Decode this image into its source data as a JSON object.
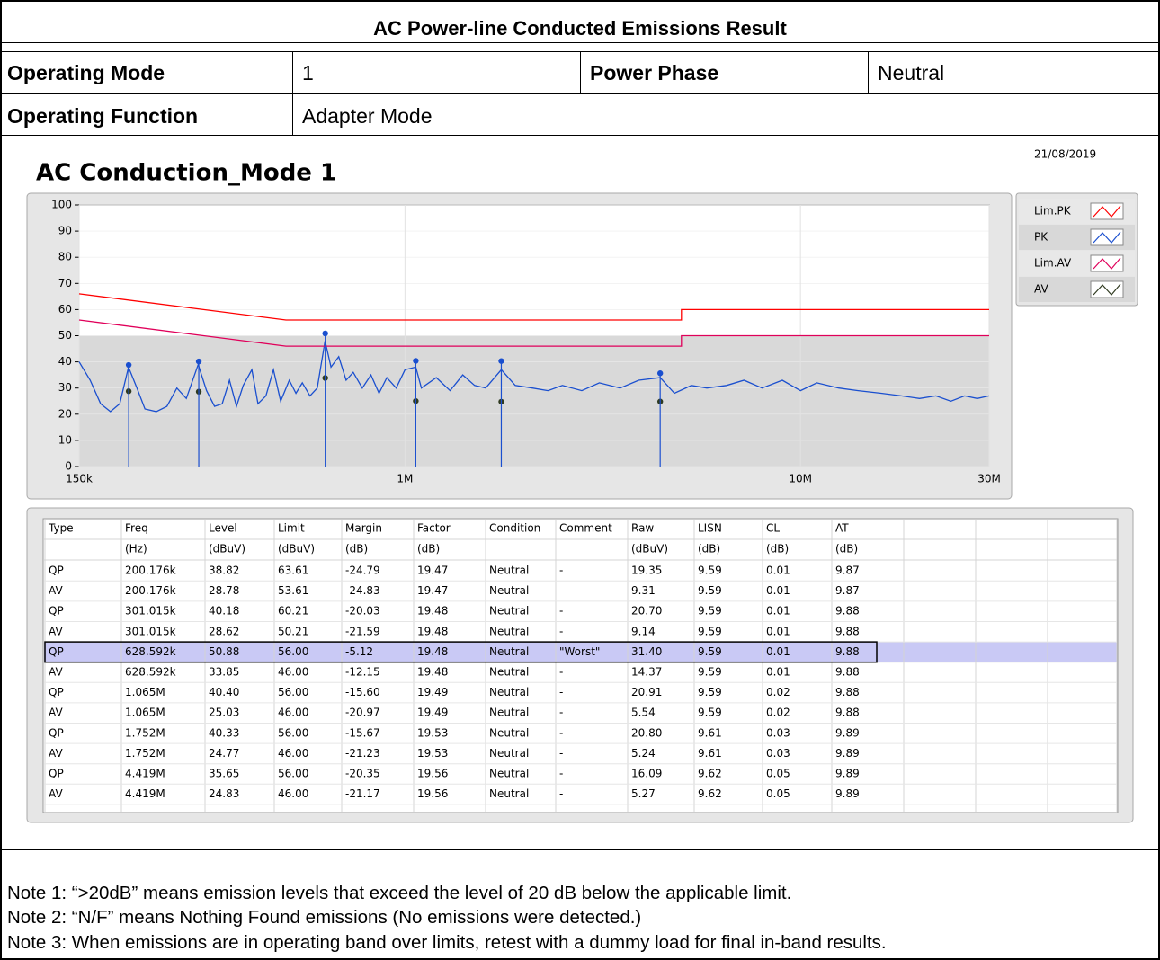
{
  "header": {
    "title": "AC Power-line Conducted Emissions Result",
    "rows": [
      [
        {
          "label": "Operating Mode",
          "value": "1"
        },
        {
          "label": "Power Phase",
          "value": "Neutral"
        }
      ],
      [
        {
          "label": "Operating Function",
          "value": "Adapter Mode"
        }
      ]
    ]
  },
  "chart_data": {
    "type": "line",
    "title": "AC Conduction_Mode 1",
    "date": "21/08/2019",
    "xscale": "log",
    "grid": true,
    "legend": "right",
    "xlim": [
      150000,
      30000000
    ],
    "xticks": [
      {
        "value": 150000,
        "label": "150k"
      },
      {
        "value": 1000000,
        "label": "1M"
      },
      {
        "value": 10000000,
        "label": "10M"
      },
      {
        "value": 30000000,
        "label": "30M"
      }
    ],
    "ylim": [
      0,
      100
    ],
    "yticks": [
      0,
      10,
      20,
      30,
      40,
      50,
      60,
      70,
      80,
      90,
      100
    ],
    "series": [
      {
        "name": "Lim.PK",
        "color": "#ff0000",
        "style": "line",
        "x": [
          150000,
          500000,
          5000000,
          5000000,
          30000000
        ],
        "values": [
          66,
          56,
          56,
          60,
          60
        ]
      },
      {
        "name": "PK",
        "color": "#1a4fcf",
        "style": "line",
        "x": [
          150000,
          160000,
          170000,
          180000,
          190000,
          200000,
          210000,
          220000,
          235000,
          250000,
          265000,
          280000,
          300000,
          315000,
          330000,
          345000,
          360000,
          375000,
          390000,
          410000,
          425000,
          445000,
          465000,
          485000,
          510000,
          530000,
          550000,
          575000,
          600000,
          628000,
          650000,
          680000,
          710000,
          740000,
          780000,
          820000,
          860000,
          900000,
          950000,
          1000000,
          1065000,
          1100000,
          1200000,
          1300000,
          1400000,
          1500000,
          1600000,
          1752000,
          1900000,
          2100000,
          2300000,
          2500000,
          2800000,
          3100000,
          3500000,
          3900000,
          4419000,
          4800000,
          5300000,
          5800000,
          6500000,
          7200000,
          8000000,
          9000000,
          10000000,
          11000000,
          12500000,
          14000000,
          16000000,
          18000000,
          20000000,
          22000000,
          24000000,
          26000000,
          28000000,
          30000000
        ],
        "values": [
          40,
          33,
          24,
          21,
          24,
          38,
          30,
          22,
          21,
          23,
          30,
          26,
          39,
          29,
          23,
          24,
          33,
          23,
          31,
          37,
          24,
          27,
          37,
          25,
          33,
          28,
          32,
          27,
          30,
          48,
          38,
          42,
          33,
          36,
          30,
          35,
          28,
          34,
          30,
          37,
          38,
          30,
          34,
          29,
          35,
          31,
          30,
          37,
          31,
          30,
          29,
          31,
          29,
          32,
          30,
          33,
          34,
          28,
          31,
          30,
          31,
          33,
          30,
          33,
          29,
          32,
          30,
          29,
          28,
          27,
          26,
          27,
          25,
          27,
          26,
          27
        ]
      },
      {
        "name": "Lim.AV",
        "color": "#e0005a",
        "style": "line",
        "x": [
          150000,
          500000,
          5000000,
          5000000,
          30000000
        ],
        "values": [
          56,
          46,
          46,
          50,
          50
        ]
      },
      {
        "name": "AV",
        "color": "#2f3a1f",
        "style": "dots",
        "x": [
          200176,
          301015,
          628592,
          1065000,
          1752000,
          4419000
        ],
        "values": [
          28.78,
          28.62,
          33.85,
          25.03,
          24.77,
          24.83
        ]
      }
    ],
    "markers": {
      "color": "#1a4fcf",
      "x": [
        200176,
        301015,
        628592,
        1065000,
        1752000,
        4419000
      ],
      "values": [
        38.82,
        40.18,
        50.88,
        40.4,
        40.33,
        35.65
      ]
    }
  },
  "results": {
    "columns": [
      "Type",
      "Freq",
      "Level",
      "Limit",
      "Margin",
      "Factor",
      "Condition",
      "Comment",
      "Raw",
      "LISN",
      "CL",
      "AT"
    ],
    "units": [
      null,
      "(Hz)",
      "(dBuV)",
      "(dBuV)",
      "(dB)",
      "(dB)",
      null,
      null,
      "(dBuV)",
      "(dB)",
      "(dB)",
      "(dB)"
    ],
    "highlight": 4,
    "rows": [
      [
        "QP",
        "200.176k",
        "38.82",
        "63.61",
        "-24.79",
        "19.47",
        "Neutral",
        "-",
        "19.35",
        "9.59",
        "0.01",
        "9.87"
      ],
      [
        "AV",
        "200.176k",
        "28.78",
        "53.61",
        "-24.83",
        "19.47",
        "Neutral",
        "-",
        "9.31",
        "9.59",
        "0.01",
        "9.87"
      ],
      [
        "QP",
        "301.015k",
        "40.18",
        "60.21",
        "-20.03",
        "19.48",
        "Neutral",
        "-",
        "20.70",
        "9.59",
        "0.01",
        "9.88"
      ],
      [
        "AV",
        "301.015k",
        "28.62",
        "50.21",
        "-21.59",
        "19.48",
        "Neutral",
        "-",
        "9.14",
        "9.59",
        "0.01",
        "9.88"
      ],
      [
        "QP",
        "628.592k",
        "50.88",
        "56.00",
        "-5.12",
        "19.48",
        "Neutral",
        "\"Worst\"",
        "31.40",
        "9.59",
        "0.01",
        "9.88"
      ],
      [
        "AV",
        "628.592k",
        "33.85",
        "46.00",
        "-12.15",
        "19.48",
        "Neutral",
        "-",
        "14.37",
        "9.59",
        "0.01",
        "9.88"
      ],
      [
        "QP",
        "1.065M",
        "40.40",
        "56.00",
        "-15.60",
        "19.49",
        "Neutral",
        "-",
        "20.91",
        "9.59",
        "0.02",
        "9.88"
      ],
      [
        "AV",
        "1.065M",
        "25.03",
        "46.00",
        "-20.97",
        "19.49",
        "Neutral",
        "-",
        "5.54",
        "9.59",
        "0.02",
        "9.88"
      ],
      [
        "QP",
        "1.752M",
        "40.33",
        "56.00",
        "-15.67",
        "19.53",
        "Neutral",
        "-",
        "20.80",
        "9.61",
        "0.03",
        "9.89"
      ],
      [
        "AV",
        "1.752M",
        "24.77",
        "46.00",
        "-21.23",
        "19.53",
        "Neutral",
        "-",
        "5.24",
        "9.61",
        "0.03",
        "9.89"
      ],
      [
        "QP",
        "4.419M",
        "35.65",
        "56.00",
        "-20.35",
        "19.56",
        "Neutral",
        "-",
        "16.09",
        "9.62",
        "0.05",
        "9.89"
      ],
      [
        "AV",
        "4.419M",
        "24.83",
        "46.00",
        "-21.17",
        "19.56",
        "Neutral",
        "-",
        "5.27",
        "9.62",
        "0.05",
        "9.89"
      ]
    ]
  },
  "notes": [
    "Note 1: “>20dB” means emission levels that exceed the level of 20 dB below the applicable limit.",
    "Note 2: “N/F” means Nothing Found emissions (No emissions were detected.)",
    "Note 3: When emissions are in operating band over limits, retest with a dummy load for final in-band results."
  ]
}
